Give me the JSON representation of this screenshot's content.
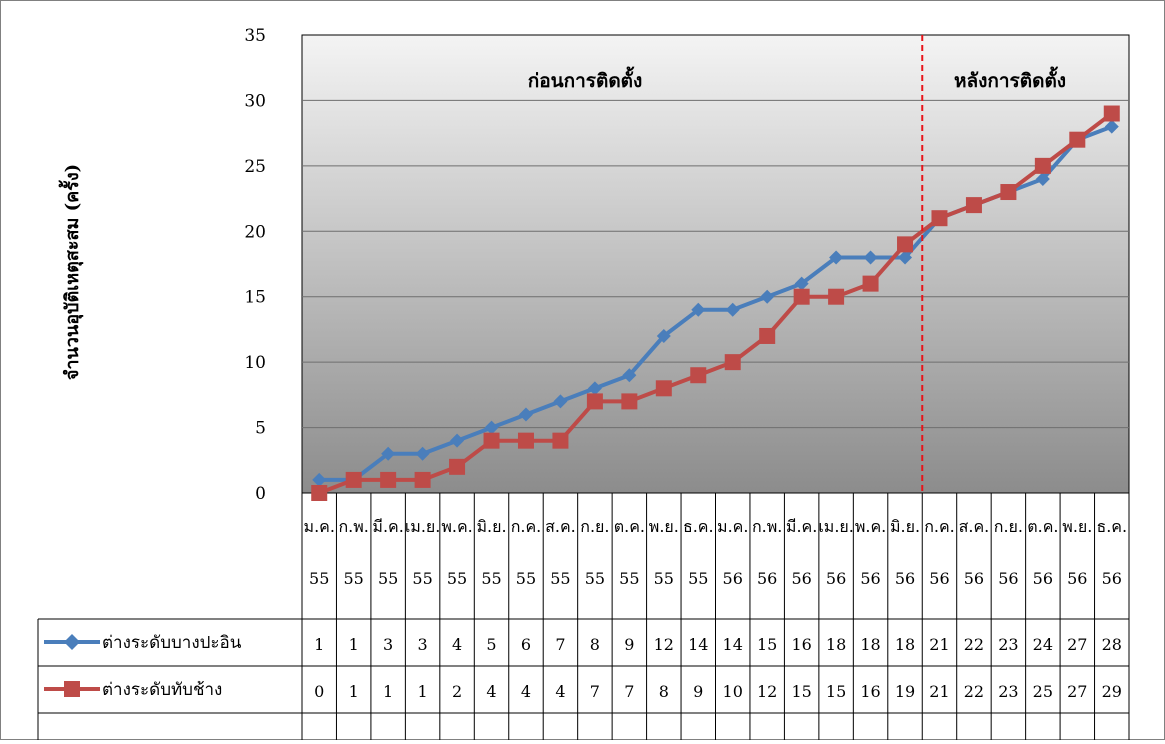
{
  "chart_data": {
    "type": "line",
    "ylabel": "จำนวนอุบัติเหตุสะสม (ครั้ง)",
    "ylim": [
      0,
      35
    ],
    "yticks": [
      "0",
      "5",
      "10",
      "15",
      "20",
      "25",
      "30",
      "35"
    ],
    "grid": true,
    "categories": [
      {
        "month": "ม.ค.",
        "year": "55"
      },
      {
        "month": "ก.พ.",
        "year": "55"
      },
      {
        "month": "มี.ค.",
        "year": "55"
      },
      {
        "month": "เม.ย.",
        "year": "55"
      },
      {
        "month": "พ.ค.",
        "year": "55"
      },
      {
        "month": "มิ.ย.",
        "year": "55"
      },
      {
        "month": "ก.ค.",
        "year": "55"
      },
      {
        "month": "ส.ค.",
        "year": "55"
      },
      {
        "month": "ก.ย.",
        "year": "55"
      },
      {
        "month": "ต.ค.",
        "year": "55"
      },
      {
        "month": "พ.ย.",
        "year": "55"
      },
      {
        "month": "ธ.ค.",
        "year": "55"
      },
      {
        "month": "ม.ค.",
        "year": "56"
      },
      {
        "month": "ก.พ.",
        "year": "56"
      },
      {
        "month": "มี.ค.",
        "year": "56"
      },
      {
        "month": "เม.ย.",
        "year": "56"
      },
      {
        "month": "พ.ค.",
        "year": "56"
      },
      {
        "month": "มิ.ย.",
        "year": "56"
      },
      {
        "month": "ก.ค.",
        "year": "56"
      },
      {
        "month": "ส.ค.",
        "year": "56"
      },
      {
        "month": "ก.ย.",
        "year": "56"
      },
      {
        "month": "ต.ค.",
        "year": "56"
      },
      {
        "month": "พ.ย.",
        "year": "56"
      },
      {
        "month": "ธ.ค.",
        "year": "56"
      }
    ],
    "series": [
      {
        "name": "ต่างระดับบางปะอิน",
        "color": "#4A7EBB",
        "marker": "diamond",
        "values": [
          1,
          1,
          3,
          3,
          4,
          5,
          6,
          7,
          8,
          9,
          12,
          14,
          14,
          15,
          16,
          18,
          18,
          18,
          21,
          22,
          23,
          24,
          27,
          28
        ]
      },
      {
        "name": "ต่างระดับทับช้าง",
        "color": "#BE4B48",
        "marker": "square",
        "values": [
          0,
          1,
          1,
          1,
          2,
          4,
          4,
          4,
          7,
          7,
          8,
          9,
          10,
          12,
          15,
          15,
          16,
          19,
          21,
          22,
          23,
          25,
          27,
          29
        ]
      }
    ],
    "annotations": [
      {
        "text": "ก่อนการติดตั้ง"
      },
      {
        "text": "หลังการติดตั้ง"
      }
    ],
    "divider_after_index": 17,
    "divider_color": "#E8141A"
  }
}
